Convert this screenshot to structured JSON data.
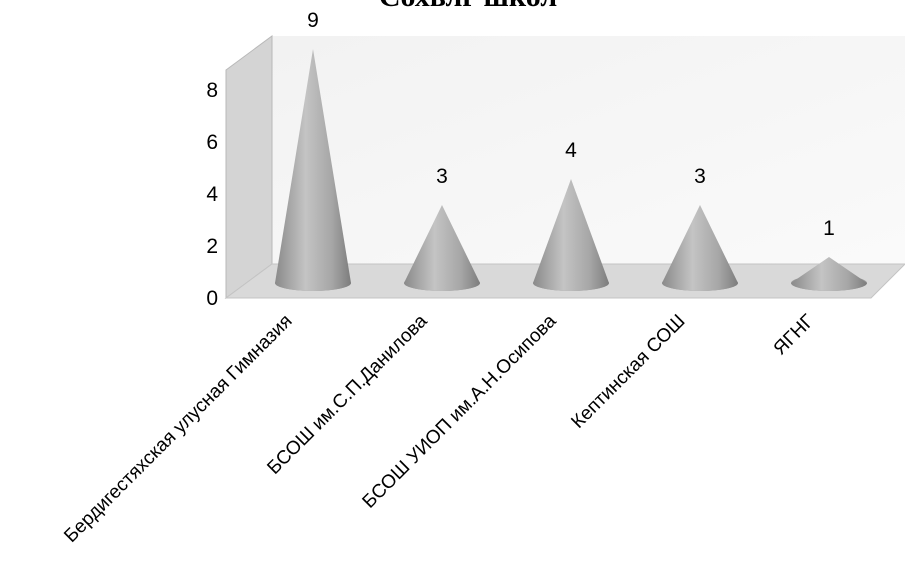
{
  "chart_data": {
    "type": "bar",
    "style": "3d-cone",
    "title": "Сохвлг школ",
    "categories": [
      "Бердигестяхская улусная Гимназия",
      "БСОШ им.С.П.Данилова",
      "БСОШ УИОП им.А.Н.Осипова",
      "Кептинская СОШ",
      "ЯГНГ"
    ],
    "values": [
      9,
      3,
      4,
      3,
      1
    ],
    "data_labels": [
      "9",
      "3",
      "4",
      "3",
      "1"
    ],
    "y_ticks": [
      "0",
      "2",
      "4",
      "6",
      "8"
    ],
    "ylim": [
      0,
      9
    ],
    "xlabel": "",
    "ylabel": "",
    "grid": false,
    "legend": "none",
    "colors": {
      "cone": "#a9a9a9",
      "floor": "#d9d9d9",
      "wall": "#ececec",
      "side_wall": "#d4d4d4"
    }
  }
}
